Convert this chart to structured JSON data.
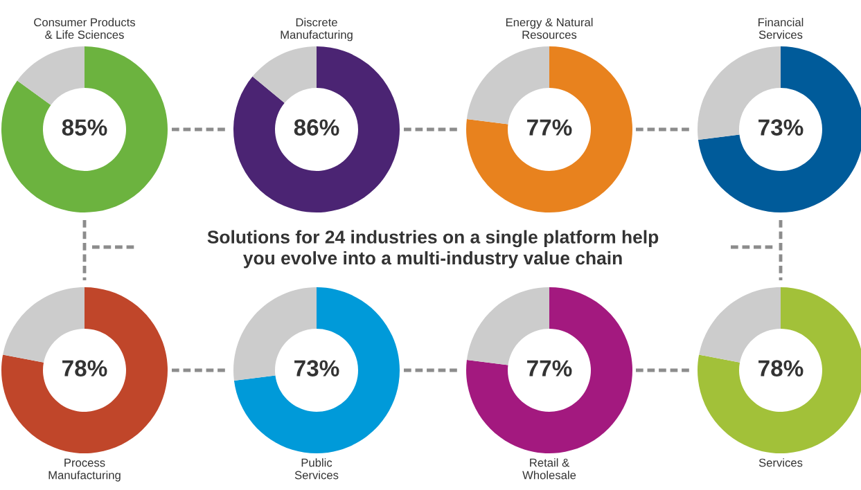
{
  "chart_data": [
    {
      "type": "donut",
      "title": "Consumer Products\n& Life Sciences",
      "categories": [
        null,
        null
      ],
      "values": [
        85,
        15
      ],
      "colors": [
        "#6cb33f",
        "#cccccc"
      ],
      "value_labels": [
        "85%",
        null
      ]
    },
    {
      "type": "donut",
      "title": "Discrete\nManufacturing",
      "categories": [
        null,
        null
      ],
      "values": [
        86,
        14
      ],
      "colors": [
        "#4b2473",
        "#cccccc"
      ],
      "value_labels": [
        "86%",
        null
      ]
    },
    {
      "type": "donut",
      "title": "Energy & Natural\nResources",
      "categories": [
        null,
        null
      ],
      "values": [
        77,
        23
      ],
      "colors": [
        "#e8821e",
        "#cccccc"
      ],
      "value_labels": [
        "77%",
        null
      ]
    },
    {
      "type": "donut",
      "title": "Financial\nServices",
      "categories": [
        null,
        null
      ],
      "values": [
        73,
        27
      ],
      "colors": [
        "#005b9a",
        "#cccccc"
      ],
      "value_labels": [
        "73%",
        null
      ]
    },
    {
      "type": "other",
      "title": "Solutions for 24 industries on a single platform help\nyou evolve into a multi-industry value chain"
    },
    {
      "type": "donut",
      "xlabel": "Process\nManufacturing",
      "categories": [
        null,
        null
      ],
      "values": [
        78,
        22
      ],
      "colors": [
        "#c0462a",
        "#cccccc"
      ],
      "value_labels": [
        "78%",
        null
      ]
    },
    {
      "type": "donut",
      "xlabel": "Public\nServices",
      "categories": [
        null,
        null
      ],
      "values": [
        73,
        27
      ],
      "colors": [
        "#009ad9",
        "#cccccc"
      ],
      "value_labels": [
        "73%",
        null
      ]
    },
    {
      "type": "donut",
      "xlabel": "Retail &\nWholesale",
      "categories": [
        null,
        null
      ],
      "values": [
        77,
        23
      ],
      "colors": [
        "#a3197f",
        "#cccccc"
      ],
      "value_labels": [
        "77%",
        null
      ]
    },
    {
      "type": "donut",
      "xlabel": "Services",
      "categories": [
        null,
        null
      ],
      "values": [
        78,
        22
      ],
      "colors": [
        "#a2c139",
        "#cccccc"
      ],
      "value_labels": [
        "78%",
        null
      ]
    }
  ]
}
